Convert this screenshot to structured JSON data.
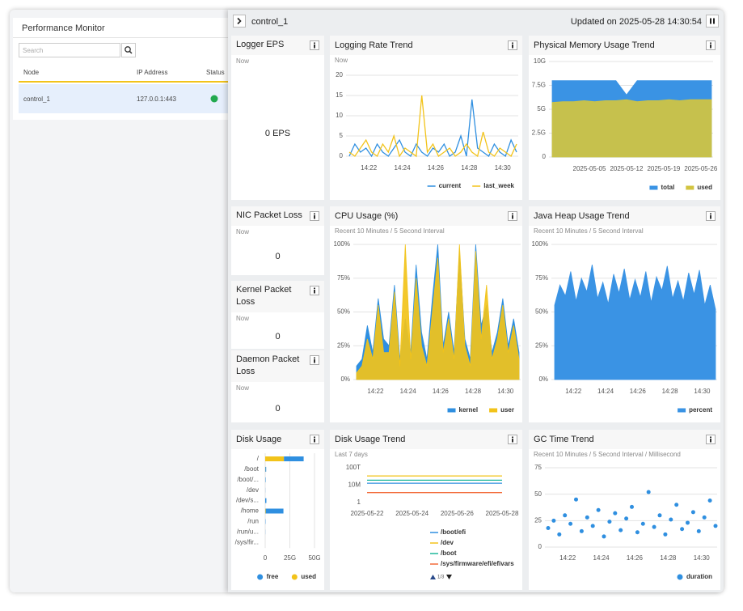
{
  "sidebar": {
    "title": "Performance Monitor",
    "search_placeholder": "Search",
    "columns": [
      "Node",
      "IP Address",
      "Status"
    ],
    "rows": [
      [
        "control_1",
        "127.0.0.1:443"
      ]
    ]
  },
  "header": {
    "node": "control_1",
    "updated": "Updated on 2025-05-28 14:30:54"
  },
  "stats": [
    {
      "title": "Logger EPS",
      "label": "Now",
      "value": "0 EPS"
    },
    {
      "title": "NIC Packet Loss",
      "label": "Now",
      "value": 0
    },
    {
      "title": "Kernel Packet Loss",
      "label": "Now",
      "value": 0
    },
    {
      "title": "Daemon Packet Loss",
      "label": "Now",
      "value": 0
    }
  ],
  "chart_data": [
    {
      "type": "line",
      "title": "Logging Rate Trend",
      "subtitle": "Now",
      "x": [
        "14:20:50",
        "14:21:10",
        "14:21:30",
        "14:21:50",
        "14:22:10",
        "14:22:30",
        "14:22:50",
        "14:23:10",
        "14:23:30",
        "14:23:50",
        "14:24:10",
        "14:24:30",
        "14:24:50",
        "14:25:10",
        "14:25:30",
        "14:25:50",
        "14:26:10",
        "14:26:30",
        "14:26:50",
        "14:27:10",
        "14:27:30",
        "14:27:50",
        "14:28:10",
        "14:28:30",
        "14:28:50",
        "14:29:10",
        "14:29:30",
        "14:29:50",
        "14:30:10",
        "14:30:30",
        "14:30:50"
      ],
      "xlim": [
        "14:20:50",
        "14:30:50"
      ],
      "xticks": [
        "14:22",
        "14:24",
        "14:26",
        "14:28",
        "14:30"
      ],
      "ylim": [
        0,
        20
      ],
      "yticks": [
        0,
        5,
        10,
        15,
        20
      ],
      "grid": true,
      "series": [
        {
          "name": "current",
          "color": "#2f8fe0",
          "values": [
            0,
            3,
            1,
            2,
            0,
            3,
            1,
            0,
            2,
            4,
            1,
            0,
            3,
            1,
            0,
            2,
            1,
            3,
            0,
            1,
            5,
            0,
            14,
            2,
            1,
            0,
            3,
            1,
            0,
            4,
            1
          ]
        },
        {
          "name": "last_week",
          "color": "#f2c31a",
          "values": [
            1,
            0,
            2,
            4,
            1,
            0,
            3,
            1,
            5,
            0,
            2,
            1,
            0,
            15,
            1,
            3,
            0,
            1,
            2,
            0,
            1,
            3,
            1,
            0,
            6,
            1,
            0,
            2,
            1,
            0,
            3
          ]
        }
      ]
    },
    {
      "type": "area",
      "title": "Physical Memory Usage Trend",
      "x": [
        "2025-04-28",
        "2025-04-30",
        "2025-05-02",
        "2025-05-04",
        "2025-05-06",
        "2025-05-08",
        "2025-05-10",
        "2025-05-12",
        "2025-05-14",
        "2025-05-16",
        "2025-05-18",
        "2025-05-20",
        "2025-05-22",
        "2025-05-24",
        "2025-05-26",
        "2025-05-28"
      ],
      "xlim": [
        "2025-04-28",
        "2025-05-28"
      ],
      "xticks": [
        "2025-05-05",
        "2025-05-12",
        "2025-05-19",
        "2025-05-26"
      ],
      "ylim": [
        0,
        10
      ],
      "yticks": [
        0,
        {
          "value": 2.5,
          "label": "2.5G"
        },
        {
          "value": 5,
          "label": "5G"
        },
        {
          "value": 7.5,
          "label": "7.5G"
        },
        {
          "value": 10,
          "label": "10G"
        }
      ],
      "grid": true,
      "series": [
        {
          "name": "total",
          "color": "#3a93e4",
          "values": [
            8,
            8,
            8,
            8,
            8,
            8,
            8,
            6.5,
            8,
            8,
            8,
            8,
            8,
            8,
            8,
            8
          ]
        },
        {
          "name": "used",
          "color": "#d2c440",
          "values": [
            5.7,
            5.8,
            5.8,
            5.9,
            5.8,
            5.9,
            5.9,
            6,
            5.8,
            5.9,
            5.9,
            6,
            5.9,
            6,
            6,
            6
          ]
        }
      ]
    },
    {
      "type": "area",
      "title": "CPU Usage (%)",
      "subtitle": "Recent 10 Minutes / 5 Second Interval",
      "x": [
        "14:20:50",
        "14:21:10",
        "14:21:30",
        "14:21:50",
        "14:22:10",
        "14:22:30",
        "14:22:50",
        "14:23:10",
        "14:23:30",
        "14:23:50",
        "14:24:10",
        "14:24:30",
        "14:24:50",
        "14:25:10",
        "14:25:30",
        "14:25:50",
        "14:26:10",
        "14:26:30",
        "14:26:50",
        "14:27:10",
        "14:27:30",
        "14:27:50",
        "14:28:10",
        "14:28:30",
        "14:28:50",
        "14:29:10",
        "14:29:30",
        "14:29:50",
        "14:30:10",
        "14:30:30",
        "14:30:50"
      ],
      "xlim": [
        "14:20:50",
        "14:30:50"
      ],
      "xticks": [
        "14:22",
        "14:24",
        "14:26",
        "14:28",
        "14:30"
      ],
      "ylim": [
        0,
        100
      ],
      "yticks": [
        {
          "value": 0,
          "label": "0%"
        },
        {
          "value": 25,
          "label": "25%"
        },
        {
          "value": 50,
          "label": "50%"
        },
        {
          "value": 75,
          "label": "75%"
        },
        {
          "value": 100,
          "label": "100%"
        }
      ],
      "grid": true,
      "series": [
        {
          "name": "kernel",
          "color": "#2f8fe0",
          "values": [
            10,
            15,
            40,
            20,
            60,
            30,
            25,
            70,
            15,
            45,
            20,
            85,
            35,
            15,
            60,
            100,
            25,
            50,
            20,
            95,
            30,
            15,
            100,
            40,
            55,
            20,
            35,
            60,
            25,
            45,
            20
          ]
        },
        {
          "name": "user",
          "color": "#f2c31a",
          "values": [
            5,
            10,
            30,
            15,
            55,
            20,
            20,
            65,
            10,
            100,
            15,
            75,
            25,
            10,
            50,
            90,
            20,
            45,
            15,
            100,
            25,
            10,
            95,
            30,
            70,
            15,
            30,
            55,
            20,
            40,
            15
          ]
        }
      ]
    },
    {
      "type": "area",
      "title": "Java Heap Usage Trend",
      "subtitle": "Recent 10 Minutes / 5 Second Interval",
      "x": [
        "14:20:50",
        "14:21:10",
        "14:21:30",
        "14:21:50",
        "14:22:10",
        "14:22:30",
        "14:22:50",
        "14:23:10",
        "14:23:30",
        "14:23:50",
        "14:24:10",
        "14:24:30",
        "14:24:50",
        "14:25:10",
        "14:25:30",
        "14:25:50",
        "14:26:10",
        "14:26:30",
        "14:26:50",
        "14:27:10",
        "14:27:30",
        "14:27:50",
        "14:28:10",
        "14:28:30",
        "14:28:50",
        "14:29:10",
        "14:29:30",
        "14:29:50",
        "14:30:10",
        "14:30:30",
        "14:30:50"
      ],
      "xlim": [
        "14:20:50",
        "14:30:50"
      ],
      "xticks": [
        "14:22",
        "14:24",
        "14:26",
        "14:28",
        "14:30"
      ],
      "ylim": [
        0,
        100
      ],
      "yticks": [
        {
          "value": 0,
          "label": "0%"
        },
        {
          "value": 25,
          "label": "25%"
        },
        {
          "value": 50,
          "label": "50%"
        },
        {
          "value": 75,
          "label": "75%"
        },
        {
          "value": 100,
          "label": "100%"
        }
      ],
      "grid": true,
      "series": [
        {
          "name": "percent",
          "color": "#3a93e4",
          "values": [
            55,
            70,
            62,
            80,
            58,
            75,
            65,
            85,
            60,
            72,
            56,
            78,
            64,
            82,
            59,
            74,
            61,
            80,
            57,
            76,
            66,
            84,
            60,
            73,
            58,
            79,
            63,
            81,
            55,
            70,
            52
          ]
        }
      ]
    },
    {
      "type": "hbar",
      "title": "Disk Usage",
      "categories": [
        "/",
        "/boot",
        "/boot/...",
        "/dev",
        "/dev/s...",
        "/home",
        "/run",
        "/run/u...",
        "/sys/fir..."
      ],
      "xlim": [
        0,
        50
      ],
      "xticks": [
        0,
        {
          "value": 25,
          "label": "25G"
        },
        {
          "value": 50,
          "label": "50G"
        }
      ],
      "grid": true,
      "series": [
        {
          "name": "free",
          "color": "#2f8fe0",
          "values": [
            20,
            0.8,
            0.4,
            0.1,
            1.2,
            18,
            0.3,
            0.1,
            0
          ]
        },
        {
          "name": "used",
          "color": "#f2c31a",
          "values": [
            19,
            0.2,
            0.1,
            0,
            0,
            0.5,
            0,
            0,
            0
          ]
        }
      ]
    },
    {
      "type": "line",
      "title": "Disk Usage Trend",
      "subtitle": "Last 7 days",
      "log": true,
      "x": [
        "2025-05-22",
        "2025-05-23",
        "2025-05-24",
        "2025-05-25",
        "2025-05-26",
        "2025-05-27",
        "2025-05-28"
      ],
      "xlim": [
        "2025-05-22",
        "2025-05-28"
      ],
      "xticks": [
        "2025-05-22",
        "2025-05-24",
        "2025-05-26",
        "2025-05-28"
      ],
      "ylim": [
        1,
        100000000000000
      ],
      "yticks": [
        1,
        {
          "value": 10000000,
          "label": "10M"
        },
        {
          "value": 100000000000000,
          "label": "100T"
        }
      ],
      "grid": false,
      "legend_page": "1/3",
      "series": [
        {
          "name": "/boot/efi",
          "color": "#2f8fe0",
          "values": [
            60000000,
            60000000,
            60000000,
            60000000,
            60000000,
            60000000,
            60000000
          ]
        },
        {
          "name": "/dev",
          "color": "#f2c31a",
          "values": [
            50000000000,
            50000000000,
            50000000000,
            50000000000,
            50000000000,
            50000000000,
            50000000000
          ]
        },
        {
          "name": "/boot",
          "color": "#1fb89a",
          "values": [
            1000000000,
            1000000000,
            1000000000,
            1000000000,
            1000000000,
            1000000000,
            1000000000
          ]
        },
        {
          "name": "/sys/firmware/efi/efivars",
          "color": "#f26b3a",
          "values": [
            10000,
            10000,
            10000,
            10000,
            10000,
            10000,
            10000
          ]
        }
      ]
    },
    {
      "type": "scatter",
      "title": "GC Time Trend",
      "subtitle": "Recent 10 Minutes / 5 Second Interval / Millisecond",
      "x": [
        "14:20:50",
        "14:21:10",
        "14:21:30",
        "14:21:50",
        "14:22:10",
        "14:22:30",
        "14:22:50",
        "14:23:10",
        "14:23:30",
        "14:23:50",
        "14:24:10",
        "14:24:30",
        "14:24:50",
        "14:25:10",
        "14:25:30",
        "14:25:50",
        "14:26:10",
        "14:26:30",
        "14:26:50",
        "14:27:10",
        "14:27:30",
        "14:27:50",
        "14:28:10",
        "14:28:30",
        "14:28:50",
        "14:29:10",
        "14:29:30",
        "14:29:50",
        "14:30:10",
        "14:30:30",
        "14:30:50"
      ],
      "xlim": [
        "14:20:50",
        "14:30:50"
      ],
      "xticks": [
        "14:22",
        "14:24",
        "14:26",
        "14:28",
        "14:30"
      ],
      "ylim": [
        0,
        75
      ],
      "yticks": [
        0,
        25,
        50,
        75
      ],
      "grid": true,
      "series": [
        {
          "name": "duration",
          "color": "#2f8fe0",
          "values": [
            18,
            25,
            12,
            30,
            22,
            45,
            15,
            28,
            20,
            35,
            10,
            24,
            32,
            16,
            27,
            38,
            14,
            22,
            52,
            19,
            30,
            12,
            26,
            40,
            17,
            23,
            33,
            15,
            28,
            44,
            20
          ]
        }
      ]
    }
  ]
}
